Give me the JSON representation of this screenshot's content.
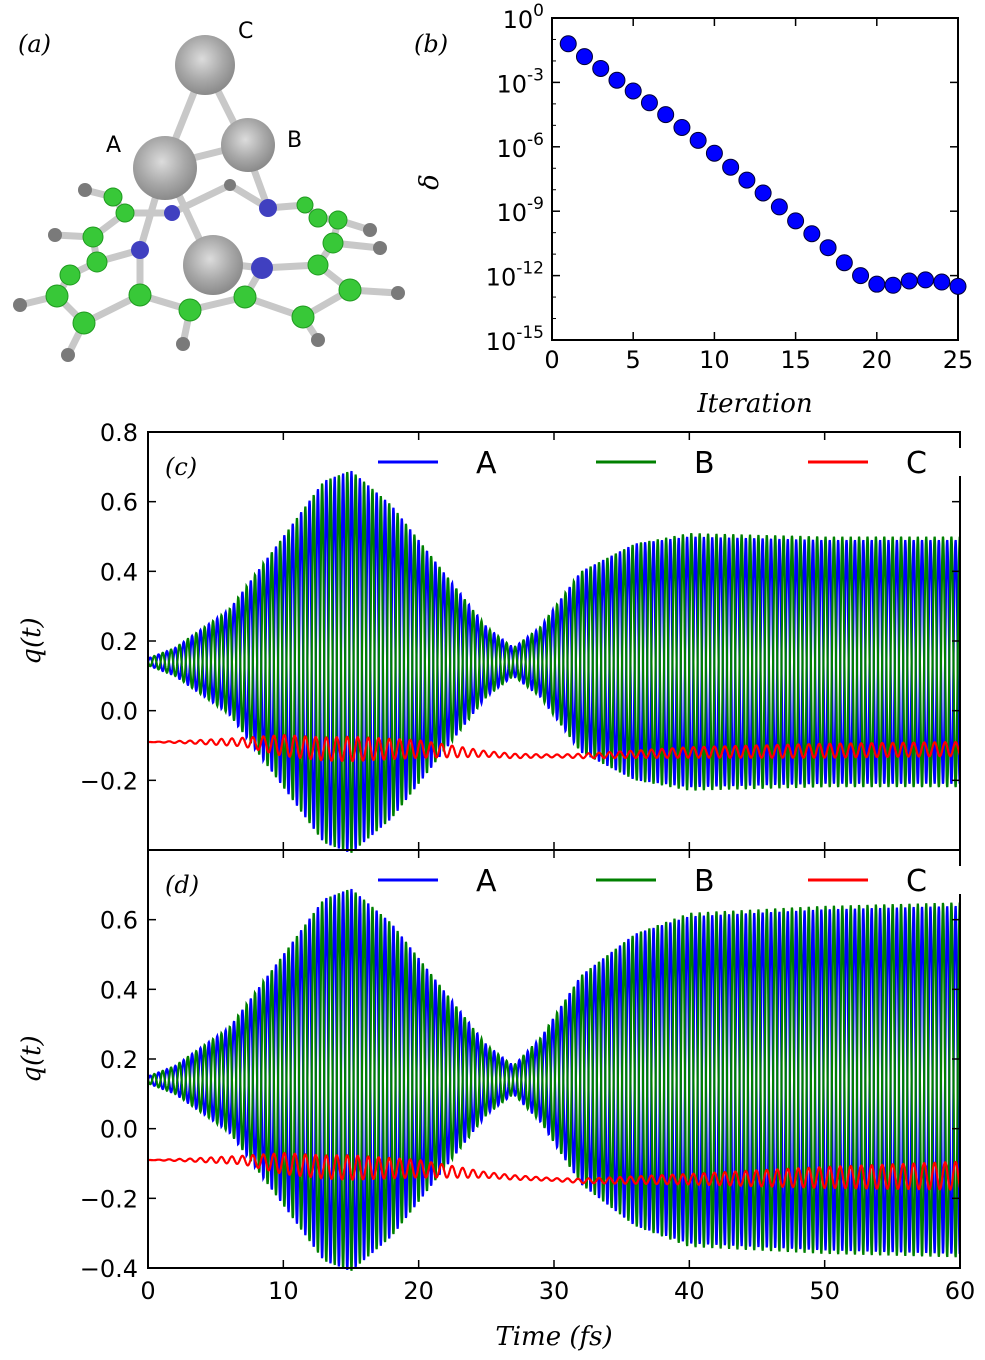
{
  "panel_a": {
    "label": "(a)",
    "atom_labels": [
      "A",
      "B",
      "C"
    ]
  },
  "chart_data": [
    {
      "panel": "(b)",
      "type": "scatter",
      "xlabel": "Iteration",
      "ylabel": "δ",
      "yscale": "log",
      "xlim": [
        0,
        25
      ],
      "ylim_exponent": [
        -15,
        0
      ],
      "xticks": [
        "0",
        "5",
        "10",
        "15",
        "20",
        "25"
      ],
      "yticks": [
        {
          "base": "10",
          "exp": "0"
        },
        {
          "base": "10",
          "exp": "-3"
        },
        {
          "base": "10",
          "exp": "-6"
        },
        {
          "base": "10",
          "exp": "-9"
        },
        {
          "base": "10",
          "exp": "-12"
        },
        {
          "base": "10",
          "exp": "-15"
        }
      ],
      "x": [
        1,
        2,
        3,
        4,
        5,
        6,
        7,
        8,
        9,
        10,
        11,
        12,
        13,
        14,
        15,
        16,
        17,
        18,
        19,
        20,
        21,
        22,
        23,
        24,
        25
      ],
      "log10_y": [
        -1.2,
        -1.8,
        -2.35,
        -2.9,
        -3.4,
        -3.95,
        -4.5,
        -5.1,
        -5.7,
        -6.3,
        -6.95,
        -7.55,
        -8.15,
        -8.8,
        -9.45,
        -10.05,
        -10.7,
        -11.4,
        -12.0,
        -12.4,
        -12.45,
        -12.25,
        -12.2,
        -12.3,
        -12.5
      ],
      "marker_color": "#0000ff",
      "grid": false
    },
    {
      "panel": "(c)",
      "type": "line",
      "ylabel": "q(t)",
      "xlim": [
        0,
        60
      ],
      "ylim": [
        -0.4,
        0.8
      ],
      "yticks": [
        "0.8",
        "0.6",
        "0.4",
        "0.2",
        "0.0",
        "−0.2"
      ],
      "legend_position": "top",
      "series": [
        {
          "name": "A",
          "color": "#0000ff",
          "baseline": 0.14,
          "envelope": [
            [
              0,
              0.01
            ],
            [
              2,
              0.04
            ],
            [
              6,
              0.15
            ],
            [
              10,
              0.36
            ],
            [
              13,
              0.52
            ],
            [
              15,
              0.55
            ],
            [
              18,
              0.45
            ],
            [
              22,
              0.25
            ],
            [
              25,
              0.1
            ],
            [
              27,
              0.04
            ],
            [
              29,
              0.1
            ],
            [
              32,
              0.26
            ],
            [
              36,
              0.34
            ],
            [
              40,
              0.36
            ],
            [
              50,
              0.35
            ],
            [
              60,
              0.35
            ]
          ]
        },
        {
          "name": "B",
          "color": "#008000",
          "baseline": 0.14,
          "envelope": [
            [
              0,
              0.01
            ],
            [
              2,
              0.04
            ],
            [
              6,
              0.15
            ],
            [
              10,
              0.36
            ],
            [
              13,
              0.52
            ],
            [
              15,
              0.55
            ],
            [
              18,
              0.45
            ],
            [
              22,
              0.25
            ],
            [
              25,
              0.1
            ],
            [
              27,
              0.04
            ],
            [
              29,
              0.1
            ],
            [
              32,
              0.26
            ],
            [
              36,
              0.34
            ],
            [
              40,
              0.37
            ],
            [
              50,
              0.36
            ],
            [
              60,
              0.36
            ]
          ]
        },
        {
          "name": "C",
          "color": "#ff0000",
          "baseline": [
            [
              0,
              -0.09
            ],
            [
              7,
              -0.09
            ],
            [
              13,
              -0.11
            ],
            [
              20,
              -0.11
            ],
            [
              27,
              -0.13
            ],
            [
              32,
              -0.13
            ],
            [
              40,
              -0.12
            ],
            [
              50,
              -0.115
            ],
            [
              60,
              -0.11
            ]
          ],
          "envelope": [
            [
              0,
              0.0
            ],
            [
              3,
              0.004
            ],
            [
              7,
              0.012
            ],
            [
              10,
              0.03
            ],
            [
              15,
              0.035
            ],
            [
              20,
              0.025
            ],
            [
              25,
              0.008
            ],
            [
              30,
              0.004
            ],
            [
              40,
              0.015
            ],
            [
              50,
              0.02
            ],
            [
              60,
              0.02
            ]
          ]
        }
      ],
      "period_fs": 0.62,
      "grid": false
    },
    {
      "panel": "(d)",
      "type": "line",
      "ylabel": "q(t)",
      "xlabel": "Time (fs)",
      "xlim": [
        0,
        60
      ],
      "ylim": [
        -0.4,
        0.8
      ],
      "xticks": [
        "0",
        "10",
        "20",
        "30",
        "40",
        "50",
        "60"
      ],
      "yticks": [
        "0.6",
        "0.4",
        "0.2",
        "0.0",
        "−0.2",
        "−0.4"
      ],
      "legend_position": "top",
      "series": [
        {
          "name": "A",
          "color": "#0000ff",
          "baseline": 0.14,
          "envelope": [
            [
              0,
              0.01
            ],
            [
              2,
              0.04
            ],
            [
              6,
              0.15
            ],
            [
              10,
              0.36
            ],
            [
              13,
              0.52
            ],
            [
              15,
              0.55
            ],
            [
              18,
              0.45
            ],
            [
              22,
              0.25
            ],
            [
              25,
              0.1
            ],
            [
              27,
              0.04
            ],
            [
              29,
              0.12
            ],
            [
              32,
              0.3
            ],
            [
              36,
              0.42
            ],
            [
              40,
              0.47
            ],
            [
              50,
              0.49
            ],
            [
              60,
              0.5
            ]
          ]
        },
        {
          "name": "B",
          "color": "#008000",
          "baseline": 0.14,
          "envelope": [
            [
              0,
              0.01
            ],
            [
              2,
              0.04
            ],
            [
              6,
              0.15
            ],
            [
              10,
              0.36
            ],
            [
              13,
              0.52
            ],
            [
              15,
              0.55
            ],
            [
              18,
              0.45
            ],
            [
              22,
              0.25
            ],
            [
              25,
              0.1
            ],
            [
              27,
              0.04
            ],
            [
              29,
              0.12
            ],
            [
              32,
              0.3
            ],
            [
              36,
              0.42
            ],
            [
              40,
              0.48
            ],
            [
              50,
              0.5
            ],
            [
              60,
              0.51
            ]
          ]
        },
        {
          "name": "C",
          "color": "#ff0000",
          "baseline": [
            [
              0,
              -0.09
            ],
            [
              7,
              -0.09
            ],
            [
              13,
              -0.11
            ],
            [
              20,
              -0.115
            ],
            [
              27,
              -0.14
            ],
            [
              32,
              -0.15
            ],
            [
              40,
              -0.145
            ],
            [
              50,
              -0.14
            ],
            [
              60,
              -0.135
            ]
          ],
          "envelope": [
            [
              0,
              0.0
            ],
            [
              3,
              0.004
            ],
            [
              7,
              0.012
            ],
            [
              10,
              0.03
            ],
            [
              15,
              0.035
            ],
            [
              20,
              0.025
            ],
            [
              25,
              0.008
            ],
            [
              30,
              0.004
            ],
            [
              40,
              0.015
            ],
            [
              50,
              0.03
            ],
            [
              60,
              0.04
            ]
          ]
        }
      ],
      "period_fs": 0.62,
      "grid": false
    }
  ]
}
